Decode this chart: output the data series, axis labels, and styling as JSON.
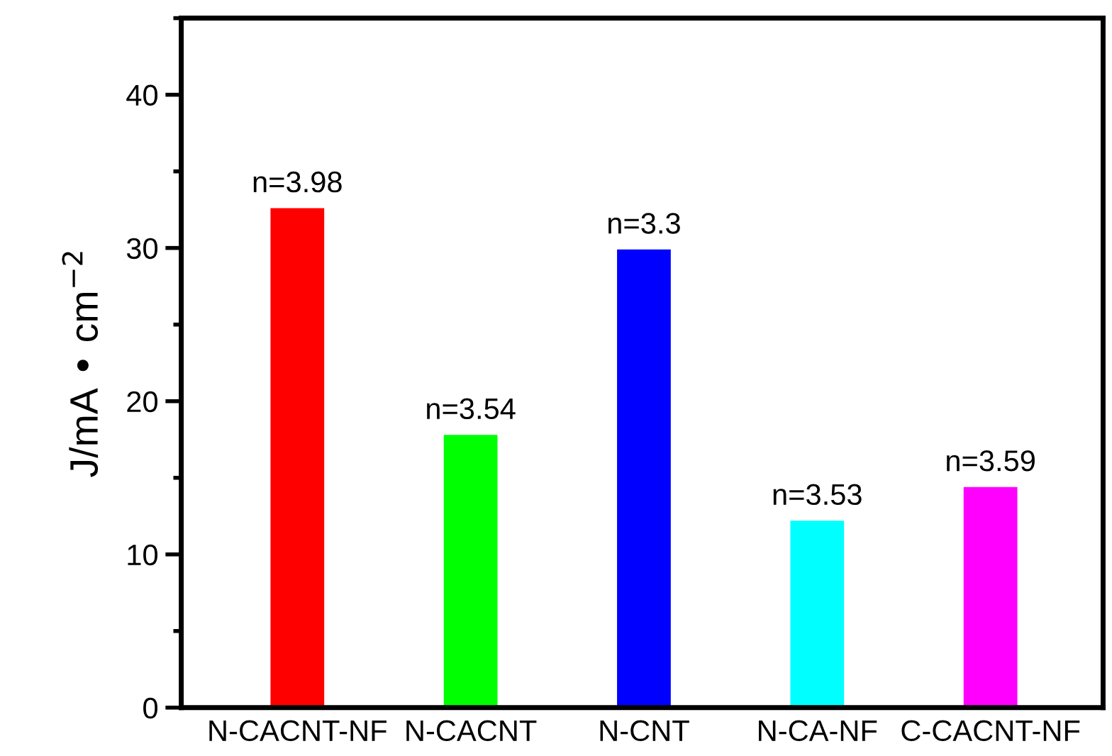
{
  "chart_data": {
    "type": "bar",
    "ylabel": "J/mA • cm$^{−2}$",
    "categories": [
      "N-CACNT-NF",
      "N-CACNT",
      "N-CNT",
      "N-CA-NF",
      "C-CACNT-NF"
    ],
    "values": [
      32.6,
      17.8,
      29.9,
      12.2,
      14.4
    ],
    "colors": [
      "#ff0000",
      "#00ff00",
      "#0000ff",
      "#00ffff",
      "#ff00ff"
    ],
    "annotations": [
      {
        "text": "n=3.98",
        "x": "N-CACNT-NF",
        "y": 32.6
      },
      {
        "text": "n=3.54",
        "x": "N-CACNT",
        "y": 17.8
      },
      {
        "text": "n=3.3",
        "x": "N-CNT",
        "y": 29.9
      },
      {
        "text": "n=3.53",
        "x": "N-CA-NF",
        "y": 12.2
      },
      {
        "text": "n=3.59",
        "x": "C-CACNT-NF",
        "y": 14.4
      }
    ],
    "ylim": [
      0,
      45
    ],
    "yticks": [
      0,
      10,
      20,
      30,
      40
    ],
    "grid": false,
    "legend": false
  }
}
